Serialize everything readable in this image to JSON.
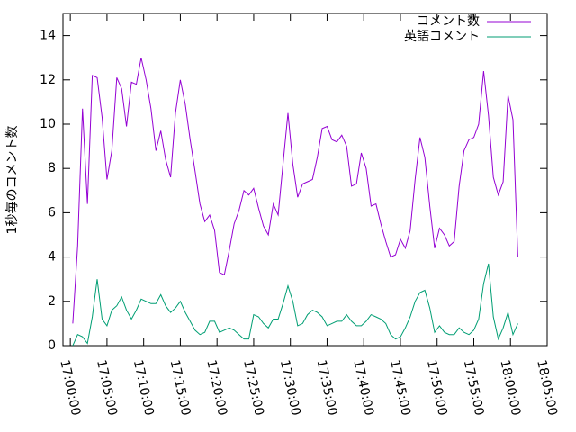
{
  "chart_data": {
    "type": "line",
    "ylabel": "1秒毎のコメント数",
    "x": [
      "17:00:20",
      "17:01:00",
      "17:01:40",
      "17:02:20",
      "17:03:00",
      "17:03:40",
      "17:04:20",
      "17:05:00",
      "17:05:40",
      "17:06:20",
      "17:07:00",
      "17:07:40",
      "17:08:20",
      "17:09:00",
      "17:09:40",
      "17:10:20",
      "17:11:00",
      "17:11:40",
      "17:12:20",
      "17:13:00",
      "17:13:40",
      "17:14:20",
      "17:15:00",
      "17:15:40",
      "17:16:20",
      "17:17:00",
      "17:17:40",
      "17:18:20",
      "17:19:00",
      "17:19:40",
      "17:20:20",
      "17:21:00",
      "17:21:40",
      "17:22:20",
      "17:23:00",
      "17:23:40",
      "17:24:20",
      "17:25:00",
      "17:25:40",
      "17:26:20",
      "17:27:00",
      "17:27:40",
      "17:28:20",
      "17:29:00",
      "17:29:40",
      "17:30:20",
      "17:31:00",
      "17:31:40",
      "17:32:20",
      "17:33:00",
      "17:33:40",
      "17:34:20",
      "17:35:00",
      "17:35:40",
      "17:36:20",
      "17:37:00",
      "17:37:40",
      "17:38:20",
      "17:39:00",
      "17:39:40",
      "17:40:20",
      "17:41:00",
      "17:41:40",
      "17:42:20",
      "17:43:00",
      "17:43:40",
      "17:44:20",
      "17:45:00",
      "17:45:40",
      "17:46:20",
      "17:47:00",
      "17:47:40",
      "17:48:20",
      "17:49:00",
      "17:49:40",
      "17:50:20",
      "17:51:00",
      "17:51:40",
      "17:52:20",
      "17:53:00",
      "17:53:40",
      "17:54:20",
      "17:55:00",
      "17:55:40",
      "17:56:20",
      "17:57:00",
      "17:57:40",
      "17:58:20",
      "17:59:00",
      "17:59:40",
      "18:00:20",
      "18:01:00"
    ],
    "series": [
      {
        "name": "コメント数",
        "color": "#9400d3",
        "values": [
          1.0,
          4.5,
          10.7,
          6.4,
          12.2,
          12.1,
          10.3,
          7.5,
          8.8,
          12.1,
          11.6,
          9.9,
          11.9,
          11.8,
          13.0,
          12.0,
          10.7,
          8.8,
          9.7,
          8.4,
          7.6,
          10.5,
          12.0,
          10.9,
          9.3,
          7.9,
          6.4,
          5.6,
          5.9,
          5.2,
          3.3,
          3.2,
          4.3,
          5.5,
          6.1,
          7.0,
          6.8,
          7.1,
          6.2,
          5.4,
          5.0,
          6.4,
          5.9,
          8.2,
          10.5,
          8.2,
          6.7,
          7.3,
          7.4,
          7.5,
          8.5,
          9.8,
          9.9,
          9.3,
          9.2,
          9.5,
          9.0,
          7.2,
          7.3,
          8.7,
          8.0,
          6.3,
          6.4,
          5.5,
          4.7,
          4.0,
          4.1,
          4.8,
          4.4,
          5.2,
          7.5,
          9.4,
          8.5,
          6.3,
          4.4,
          5.3,
          5.0,
          4.5,
          4.7,
          7.2,
          8.8,
          9.3,
          9.4,
          10.0,
          12.4,
          10.4,
          7.6,
          6.8,
          7.4,
          11.3,
          10.2,
          4.0
        ]
      },
      {
        "name": "英語コメント",
        "color": "#009e73",
        "values": [
          0.0,
          0.5,
          0.4,
          0.1,
          1.3,
          3.0,
          1.2,
          0.9,
          1.6,
          1.8,
          2.2,
          1.6,
          1.2,
          1.6,
          2.1,
          2.0,
          1.9,
          1.9,
          2.3,
          1.8,
          1.5,
          1.7,
          2.0,
          1.5,
          1.1,
          0.7,
          0.5,
          0.6,
          1.1,
          1.1,
          0.6,
          0.7,
          0.8,
          0.7,
          0.5,
          0.3,
          0.3,
          1.4,
          1.3,
          1.0,
          0.8,
          1.2,
          1.2,
          1.9,
          2.7,
          2.0,
          0.9,
          1.0,
          1.4,
          1.6,
          1.5,
          1.3,
          0.9,
          1.0,
          1.1,
          1.1,
          1.4,
          1.1,
          0.9,
          0.9,
          1.1,
          1.4,
          1.3,
          1.2,
          1.0,
          0.5,
          0.3,
          0.4,
          0.8,
          1.3,
          2.0,
          2.4,
          2.5,
          1.7,
          0.6,
          0.9,
          0.6,
          0.5,
          0.5,
          0.8,
          0.6,
          0.5,
          0.7,
          1.2,
          2.8,
          3.7,
          1.3,
          0.3,
          0.8,
          1.5,
          0.5,
          1.0
        ]
      }
    ],
    "xlim": [
      "16:59:00",
      "18:05:00"
    ],
    "xticks": [
      "17:00:00",
      "17:05:00",
      "17:10:00",
      "17:15:00",
      "17:20:00",
      "17:25:00",
      "17:30:00",
      "17:35:00",
      "17:40:00",
      "17:45:00",
      "17:50:00",
      "17:55:00",
      "18:00:00",
      "18:05:00"
    ],
    "ylim": [
      0,
      15
    ],
    "yticks": [
      0,
      2,
      4,
      6,
      8,
      10,
      12,
      14
    ],
    "legend": "top-right"
  }
}
